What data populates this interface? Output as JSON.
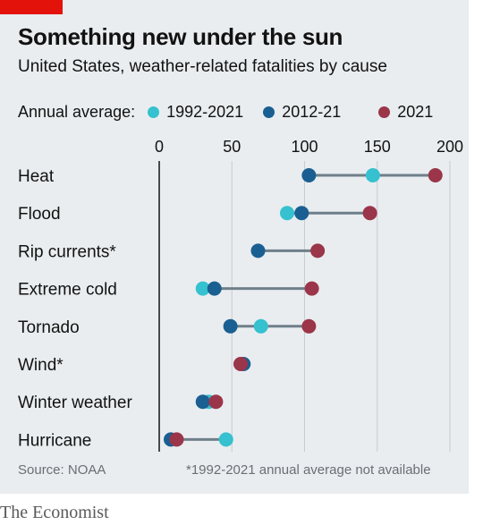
{
  "header": {
    "title": "Something new under the sun",
    "subtitle": "United States, weather-related fatalities by cause"
  },
  "legend": {
    "title": "Annual average:",
    "items": [
      {
        "label": "1992-2021",
        "color": "#35c1cf"
      },
      {
        "label": "2012-21",
        "color": "#1a5f91"
      },
      {
        "label": "2021",
        "color": "#9b3549"
      }
    ]
  },
  "chart_data": {
    "type": "dot",
    "title": "Something new under the sun",
    "subtitle": "United States, weather-related fatalities by cause",
    "xlim": [
      0,
      200
    ],
    "x_ticks": [
      "0",
      "50",
      "100",
      "150",
      "200"
    ],
    "grid": true,
    "legend_position": "top",
    "categories": [
      "Heat",
      "Flood",
      "Rip currents*",
      "Extreme cold",
      "Tornado",
      "Wind*",
      "Winter weather",
      "Hurricane"
    ],
    "series": [
      {
        "name": "1992-2021",
        "color": "#35c1cf",
        "values": [
          147,
          88,
          null,
          30,
          70,
          null,
          34,
          46
        ]
      },
      {
        "name": "2012-21",
        "color": "#1a5f91",
        "values": [
          103,
          98,
          68,
          38,
          49,
          58,
          30,
          8
        ]
      },
      {
        "name": "2021",
        "color": "#9b3549",
        "values": [
          190,
          145,
          109,
          105,
          103,
          56,
          39,
          12
        ]
      }
    ]
  },
  "footer": {
    "source": "Source: NOAA",
    "note": "*1992-2021 annual average not available"
  },
  "brand": "The Economist",
  "colors": {
    "background": "#e9edf0",
    "accent_red": "#e3120b",
    "connector": "#6f7f8a",
    "grid": "#c6ccd1",
    "axis": "#121212"
  }
}
